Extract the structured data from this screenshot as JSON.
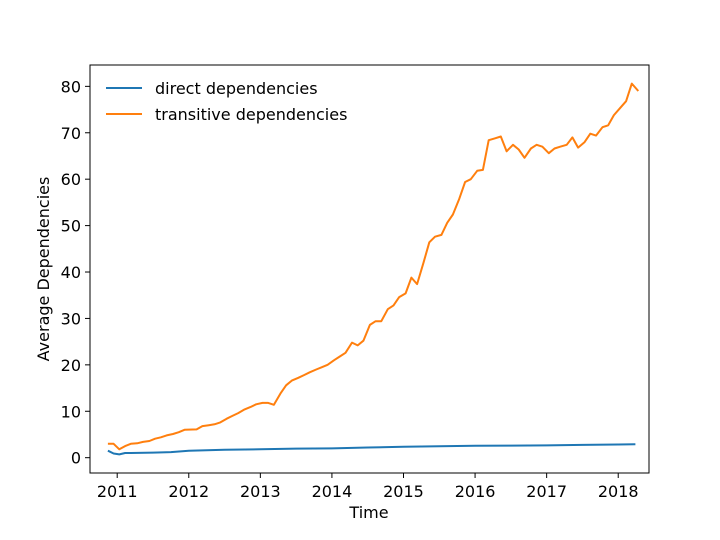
{
  "chart_data": {
    "type": "line",
    "xlabel": "Time",
    "ylabel": "Average Dependencies",
    "xlim": [
      2010.62,
      2018.43
    ],
    "ylim": [
      -3.3,
      84.6
    ],
    "x_ticks": [
      2011,
      2012,
      2013,
      2014,
      2015,
      2016,
      2017,
      2018
    ],
    "x_tick_labels": [
      "2011",
      "2012",
      "2013",
      "2014",
      "2015",
      "2016",
      "2017",
      "2018"
    ],
    "y_ticks": [
      0,
      10,
      20,
      30,
      40,
      50,
      60,
      70,
      80
    ],
    "y_tick_labels": [
      "0",
      "10",
      "20",
      "30",
      "40",
      "50",
      "60",
      "70",
      "80"
    ],
    "grid": false,
    "legend_position": "top-left",
    "series": [
      {
        "name": "direct dependencies",
        "color": "#1f77b4",
        "points": [
          [
            2010.87,
            1.5
          ],
          [
            2010.95,
            0.9
          ],
          [
            2011.03,
            0.7
          ],
          [
            2011.11,
            1.0
          ],
          [
            2011.19,
            1.0
          ],
          [
            2011.5,
            1.1
          ],
          [
            2011.75,
            1.2
          ],
          [
            2012.0,
            1.5
          ],
          [
            2012.5,
            1.7
          ],
          [
            2013.0,
            1.8
          ],
          [
            2013.5,
            1.95
          ],
          [
            2014.0,
            2.0
          ],
          [
            2014.5,
            2.2
          ],
          [
            2015.0,
            2.35
          ],
          [
            2015.5,
            2.45
          ],
          [
            2016.0,
            2.55
          ],
          [
            2016.5,
            2.6
          ],
          [
            2017.0,
            2.65
          ],
          [
            2017.5,
            2.75
          ],
          [
            2018.0,
            2.85
          ],
          [
            2018.24,
            2.9
          ]
        ]
      },
      {
        "name": "transitive dependencies",
        "color": "#ff7f0e",
        "points": [
          [
            2010.87,
            3.0
          ],
          [
            2010.95,
            3.0
          ],
          [
            2011.03,
            1.8
          ],
          [
            2011.11,
            2.5
          ],
          [
            2011.19,
            3.0
          ],
          [
            2011.28,
            3.1
          ],
          [
            2011.36,
            3.4
          ],
          [
            2011.45,
            3.6
          ],
          [
            2011.53,
            4.1
          ],
          [
            2011.61,
            4.4
          ],
          [
            2011.69,
            4.8
          ],
          [
            2011.78,
            5.1
          ],
          [
            2011.86,
            5.5
          ],
          [
            2011.94,
            6.0
          ],
          [
            2012.11,
            6.1
          ],
          [
            2012.19,
            6.8
          ],
          [
            2012.28,
            7.0
          ],
          [
            2012.36,
            7.2
          ],
          [
            2012.44,
            7.6
          ],
          [
            2012.53,
            8.4
          ],
          [
            2012.61,
            9.0
          ],
          [
            2012.69,
            9.6
          ],
          [
            2012.78,
            10.4
          ],
          [
            2012.86,
            10.9
          ],
          [
            2012.94,
            11.5
          ],
          [
            2013.03,
            11.8
          ],
          [
            2013.11,
            11.8
          ],
          [
            2013.19,
            11.4
          ],
          [
            2013.28,
            13.8
          ],
          [
            2013.36,
            15.6
          ],
          [
            2013.44,
            16.6
          ],
          [
            2013.53,
            17.2
          ],
          [
            2013.61,
            17.8
          ],
          [
            2013.69,
            18.4
          ],
          [
            2013.78,
            19.0
          ],
          [
            2013.86,
            19.5
          ],
          [
            2013.94,
            20.0
          ],
          [
            2014.03,
            21.0
          ],
          [
            2014.11,
            21.8
          ],
          [
            2014.19,
            22.6
          ],
          [
            2014.28,
            24.8
          ],
          [
            2014.36,
            24.2
          ],
          [
            2014.44,
            25.2
          ],
          [
            2014.53,
            28.6
          ],
          [
            2014.61,
            29.4
          ],
          [
            2014.69,
            29.4
          ],
          [
            2014.78,
            32.0
          ],
          [
            2014.86,
            32.8
          ],
          [
            2014.94,
            34.6
          ],
          [
            2015.03,
            35.4
          ],
          [
            2015.11,
            38.8
          ],
          [
            2015.19,
            37.4
          ],
          [
            2015.28,
            42.0
          ],
          [
            2015.36,
            46.4
          ],
          [
            2015.44,
            47.6
          ],
          [
            2015.53,
            48.0
          ],
          [
            2015.61,
            50.6
          ],
          [
            2015.69,
            52.4
          ],
          [
            2015.78,
            55.8
          ],
          [
            2015.86,
            59.4
          ],
          [
            2015.94,
            60.0
          ],
          [
            2016.03,
            61.8
          ],
          [
            2016.11,
            62.0
          ],
          [
            2016.19,
            68.4
          ],
          [
            2016.28,
            68.8
          ],
          [
            2016.36,
            69.2
          ],
          [
            2016.44,
            66.0
          ],
          [
            2016.53,
            67.4
          ],
          [
            2016.61,
            66.4
          ],
          [
            2016.69,
            64.6
          ],
          [
            2016.78,
            66.6
          ],
          [
            2016.86,
            67.4
          ],
          [
            2016.94,
            67.0
          ],
          [
            2017.03,
            65.6
          ],
          [
            2017.11,
            66.6
          ],
          [
            2017.19,
            67.0
          ],
          [
            2017.28,
            67.4
          ],
          [
            2017.36,
            69.0
          ],
          [
            2017.44,
            66.8
          ],
          [
            2017.53,
            68.0
          ],
          [
            2017.61,
            69.8
          ],
          [
            2017.69,
            69.4
          ],
          [
            2017.78,
            71.2
          ],
          [
            2017.86,
            71.6
          ],
          [
            2017.94,
            73.8
          ],
          [
            2018.03,
            75.4
          ],
          [
            2018.11,
            76.8
          ],
          [
            2018.19,
            80.6
          ],
          [
            2018.28,
            79.0
          ]
        ]
      }
    ]
  }
}
